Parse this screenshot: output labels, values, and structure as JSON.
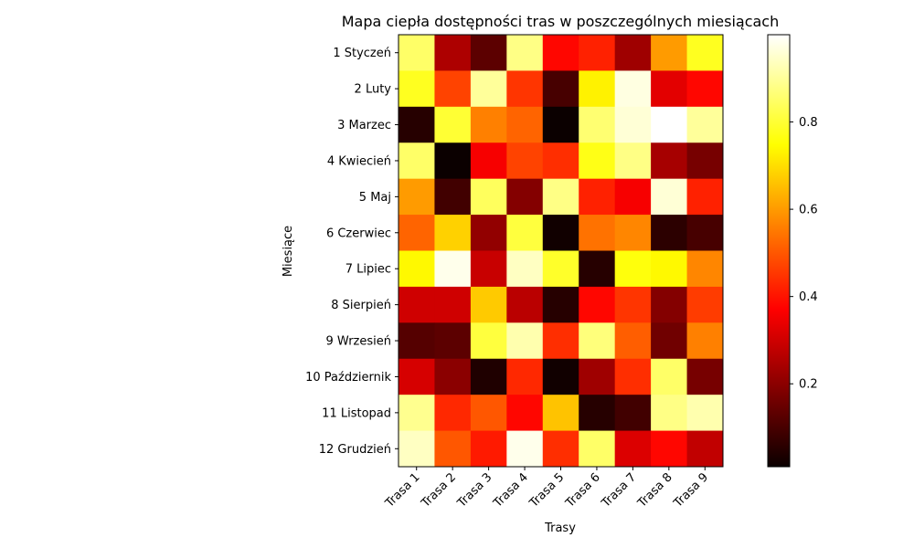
{
  "chart_data": {
    "type": "heatmap",
    "title": "Mapa ciepła dostępności tras w poszczególnych miesiącach",
    "xlabel": "Trasy",
    "ylabel": "Miesiące",
    "x_categories": [
      "Trasa 1",
      "Trasa 2",
      "Trasa 3",
      "Trasa 4",
      "Trasa 5",
      "Trasa 6",
      "Trasa 7",
      "Trasa 8",
      "Trasa 9"
    ],
    "y_categories": [
      "1 Styczeń",
      "2 Luty",
      "3 Marzec",
      "4 Kwiecień",
      "5 Maj",
      "6 Czerwiec",
      "7 Lipiec",
      "8 Sierpień",
      "9 Wrzesień",
      "10 Październik",
      "11 Listopad",
      "12 Grudzień"
    ],
    "values": [
      [
        0.85,
        0.25,
        0.13,
        0.88,
        0.38,
        0.42,
        0.23,
        0.6,
        0.78
      ],
      [
        0.78,
        0.47,
        0.9,
        0.45,
        0.1,
        0.73,
        0.97,
        0.33,
        0.38
      ],
      [
        0.05,
        0.8,
        0.56,
        0.52,
        0.01,
        0.86,
        0.96,
        1.0,
        0.9
      ],
      [
        0.85,
        0.01,
        0.36,
        0.47,
        0.44,
        0.77,
        0.88,
        0.24,
        0.17
      ],
      [
        0.6,
        0.09,
        0.84,
        0.19,
        0.88,
        0.42,
        0.36,
        0.96,
        0.42
      ],
      [
        0.52,
        0.68,
        0.21,
        0.81,
        0.02,
        0.54,
        0.57,
        0.06,
        0.1
      ],
      [
        0.74,
        0.98,
        0.29,
        0.94,
        0.79,
        0.05,
        0.76,
        0.74,
        0.57
      ],
      [
        0.3,
        0.3,
        0.67,
        0.27,
        0.05,
        0.38,
        0.45,
        0.19,
        0.46
      ],
      [
        0.12,
        0.13,
        0.81,
        0.92,
        0.44,
        0.87,
        0.51,
        0.16,
        0.56
      ],
      [
        0.31,
        0.2,
        0.04,
        0.43,
        0.02,
        0.23,
        0.44,
        0.85,
        0.17
      ],
      [
        0.89,
        0.43,
        0.5,
        0.38,
        0.66,
        0.05,
        0.09,
        0.88,
        0.92
      ],
      [
        0.94,
        0.5,
        0.41,
        0.98,
        0.44,
        0.85,
        0.32,
        0.38,
        0.28
      ]
    ],
    "colormap": "hot",
    "colorbar": {
      "min": 0.01,
      "max": 1.0,
      "ticks": [
        0.2,
        0.4,
        0.6,
        0.8
      ],
      "tick_labels": [
        "0.2",
        "0.4",
        "0.6",
        "0.8"
      ]
    },
    "grid": false
  }
}
